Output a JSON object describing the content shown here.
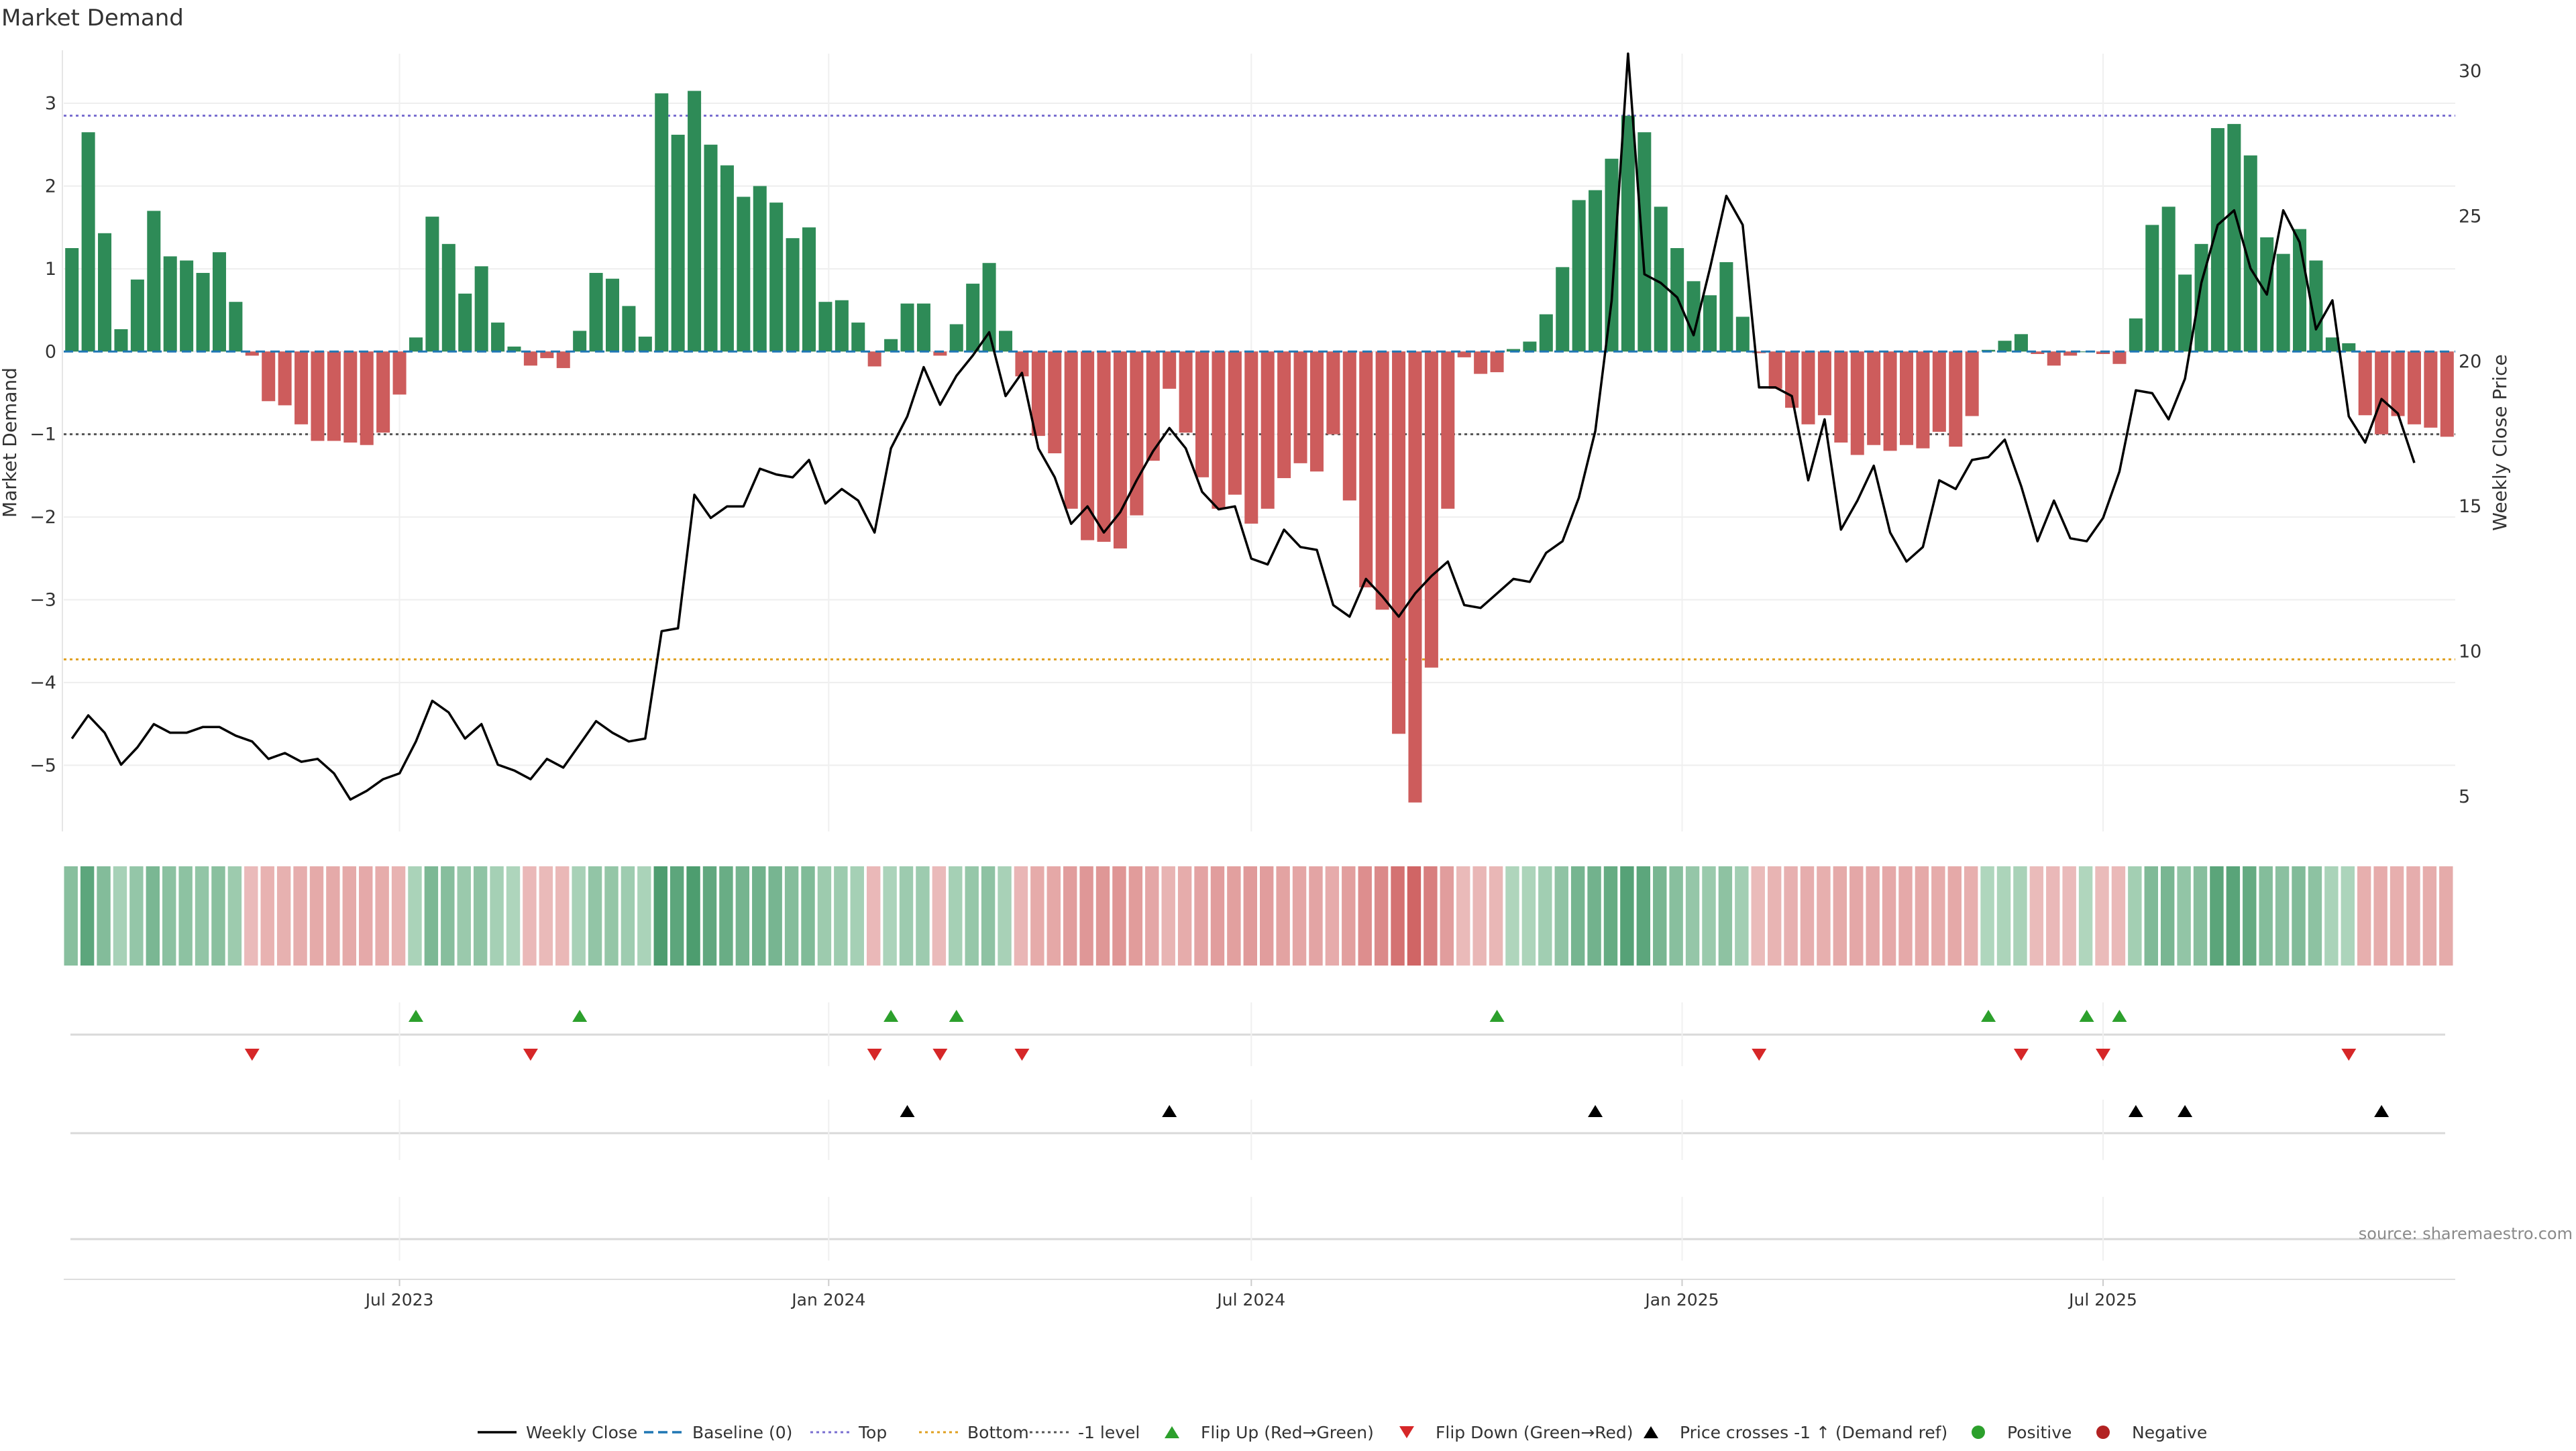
{
  "title": "Market Demand",
  "source": "source: sharemaestro.com",
  "colors": {
    "positive": "#2e8b57",
    "negative": "#cd5c5c",
    "price": "#000000",
    "baseline": "#1f77b4",
    "top": "#7a6fd0",
    "bottom": "#e0a020",
    "minus1": "#555555",
    "flip_up": "#2ca02c",
    "flip_down": "#d62728",
    "cross": "#000000",
    "legend_positive": "#2ca02c",
    "legend_negative": "#b22222"
  },
  "legend": [
    {
      "label": "Weekly Close",
      "icon": "line-solid"
    },
    {
      "label": "Baseline (0)",
      "icon": "line-dashed-blue"
    },
    {
      "label": "Top",
      "icon": "line-dotted-purple"
    },
    {
      "label": "Bottom",
      "icon": "line-dotted-orange"
    },
    {
      "label": "-1 level",
      "icon": "line-dotted-gray"
    },
    {
      "label": "Flip Up (Red→Green)",
      "icon": "triangle-up-green"
    },
    {
      "label": "Flip Down (Green→Red)",
      "icon": "triangle-down-red"
    },
    {
      "label": "Price crosses -1 ↑ (Demand ref)",
      "icon": "triangle-up-black"
    },
    {
      "label": "Positive",
      "icon": "circle-green"
    },
    {
      "label": "Negative",
      "icon": "circle-red"
    }
  ],
  "chart_data": {
    "type": "bar",
    "title": "Market Demand",
    "ylabel": "Market Demand",
    "y2label": "Weekly Close Price",
    "ylim": [
      -5.8,
      3.6
    ],
    "y2lim": [
      3.8,
      30.6
    ],
    "yticks": [
      "3",
      "2",
      "1",
      "0",
      "−1",
      "−2",
      "−3",
      "−4",
      "−5"
    ],
    "y2ticks": [
      "30",
      "25",
      "20",
      "15",
      "10",
      "5"
    ],
    "xticks": [
      "Jul 2023",
      "Jan 2024",
      "Jul 2024",
      "Jan 2025",
      "Jul 2025"
    ],
    "xtick_index": [
      20.5,
      46.7,
      72.5,
      98.8,
      124.5
    ],
    "reference_lines": {
      "baseline": 0,
      "top": 2.85,
      "bottom": -3.72,
      "minus1": -1
    },
    "demand": [
      1.25,
      2.65,
      1.43,
      0.27,
      0.87,
      1.7,
      1.15,
      1.1,
      0.95,
      1.2,
      0.6,
      -0.05,
      -0.6,
      -0.65,
      -0.88,
      -1.08,
      -1.08,
      -1.1,
      -1.13,
      -0.98,
      -0.52,
      0.17,
      1.63,
      1.3,
      0.7,
      1.03,
      0.35,
      0.06,
      -0.17,
      -0.08,
      -0.2,
      0.25,
      0.95,
      0.88,
      0.55,
      0.18,
      3.12,
      2.62,
      3.15,
      2.5,
      2.25,
      1.87,
      2.0,
      1.8,
      1.37,
      1.5,
      0.6,
      0.62,
      0.35,
      -0.18,
      0.15,
      0.58,
      0.58,
      -0.05,
      0.33,
      0.82,
      1.07,
      0.25,
      -0.3,
      -1.02,
      -1.23,
      -1.9,
      -2.28,
      -2.3,
      -2.38,
      -1.98,
      -1.32,
      -0.45,
      -0.98,
      -1.52,
      -1.9,
      -1.73,
      -2.08,
      -1.9,
      -1.53,
      -1.35,
      -1.45,
      -1.0,
      -1.8,
      -2.85,
      -3.12,
      -4.62,
      -5.45,
      -3.82,
      -1.9,
      -0.07,
      -0.27,
      -0.25,
      0.03,
      0.12,
      0.45,
      1.02,
      1.83,
      1.95,
      2.33,
      2.85,
      2.65,
      1.75,
      1.25,
      0.85,
      0.68,
      1.08,
      0.42,
      -0.02,
      -0.45,
      -0.68,
      -0.88,
      -0.77,
      -1.1,
      -1.25,
      -1.13,
      -1.2,
      -1.13,
      -1.17,
      -0.97,
      -1.15,
      -0.78,
      0.02,
      0.13,
      0.21,
      -0.03,
      -0.17,
      -0.05,
      0.0,
      -0.03,
      -0.15,
      0.4,
      1.53,
      1.75,
      0.93,
      1.3,
      2.7,
      2.75,
      2.37,
      1.38,
      1.18,
      1.48,
      1.1,
      0.17,
      0.1,
      -0.77,
      -1.0,
      -0.78,
      -0.88,
      -0.92,
      -1.03
    ],
    "weekly_close": [
      7.0,
      7.8,
      7.2,
      6.1,
      6.7,
      7.5,
      7.2,
      7.2,
      7.4,
      7.4,
      7.1,
      6.9,
      6.3,
      6.5,
      6.2,
      6.3,
      5.8,
      4.9,
      5.2,
      5.6,
      5.8,
      6.9,
      8.3,
      7.9,
      7.0,
      7.5,
      6.1,
      5.9,
      5.6,
      6.3,
      6.0,
      6.8,
      7.6,
      7.2,
      6.9,
      7.0,
      10.7,
      10.8,
      15.4,
      14.6,
      15.0,
      15.0,
      16.3,
      16.1,
      16.0,
      16.6,
      15.1,
      15.6,
      15.2,
      14.1,
      17.0,
      18.1,
      19.8,
      18.5,
      19.5,
      20.2,
      21.0,
      18.8,
      19.6,
      17.0,
      16.0,
      14.4,
      15.0,
      14.1,
      14.8,
      15.9,
      16.9,
      17.7,
      17.0,
      15.5,
      14.9,
      15.0,
      13.2,
      13.0,
      14.2,
      13.6,
      13.5,
      11.6,
      11.2,
      12.5,
      11.9,
      11.2,
      12.0,
      12.6,
      13.1,
      11.6,
      11.5,
      12.0,
      12.5,
      12.4,
      13.4,
      13.8,
      15.3,
      17.6,
      22.1,
      30.6,
      23.0,
      22.7,
      22.2,
      20.9,
      23.2,
      25.7,
      24.7,
      19.1,
      19.1,
      18.8,
      15.9,
      18.0,
      14.2,
      15.2,
      16.4,
      14.1,
      13.1,
      13.6,
      15.9,
      15.6,
      16.6,
      16.7,
      17.3,
      15.7,
      13.8,
      15.2,
      13.9,
      13.8,
      14.6,
      16.2,
      19.0,
      18.9,
      18.0,
      19.4,
      22.7,
      24.7,
      25.2,
      23.2,
      22.3,
      25.2,
      24.1,
      21.1,
      22.1,
      18.1,
      17.2,
      18.7,
      18.2,
      16.5
    ],
    "flip_up_index": [
      21,
      31,
      50,
      54,
      87,
      117,
      123,
      125
    ],
    "flip_down_index": [
      11,
      28,
      49,
      53,
      58,
      103,
      119,
      124,
      139
    ],
    "price_cross_index": [
      51,
      67,
      93,
      126,
      129,
      141
    ]
  }
}
